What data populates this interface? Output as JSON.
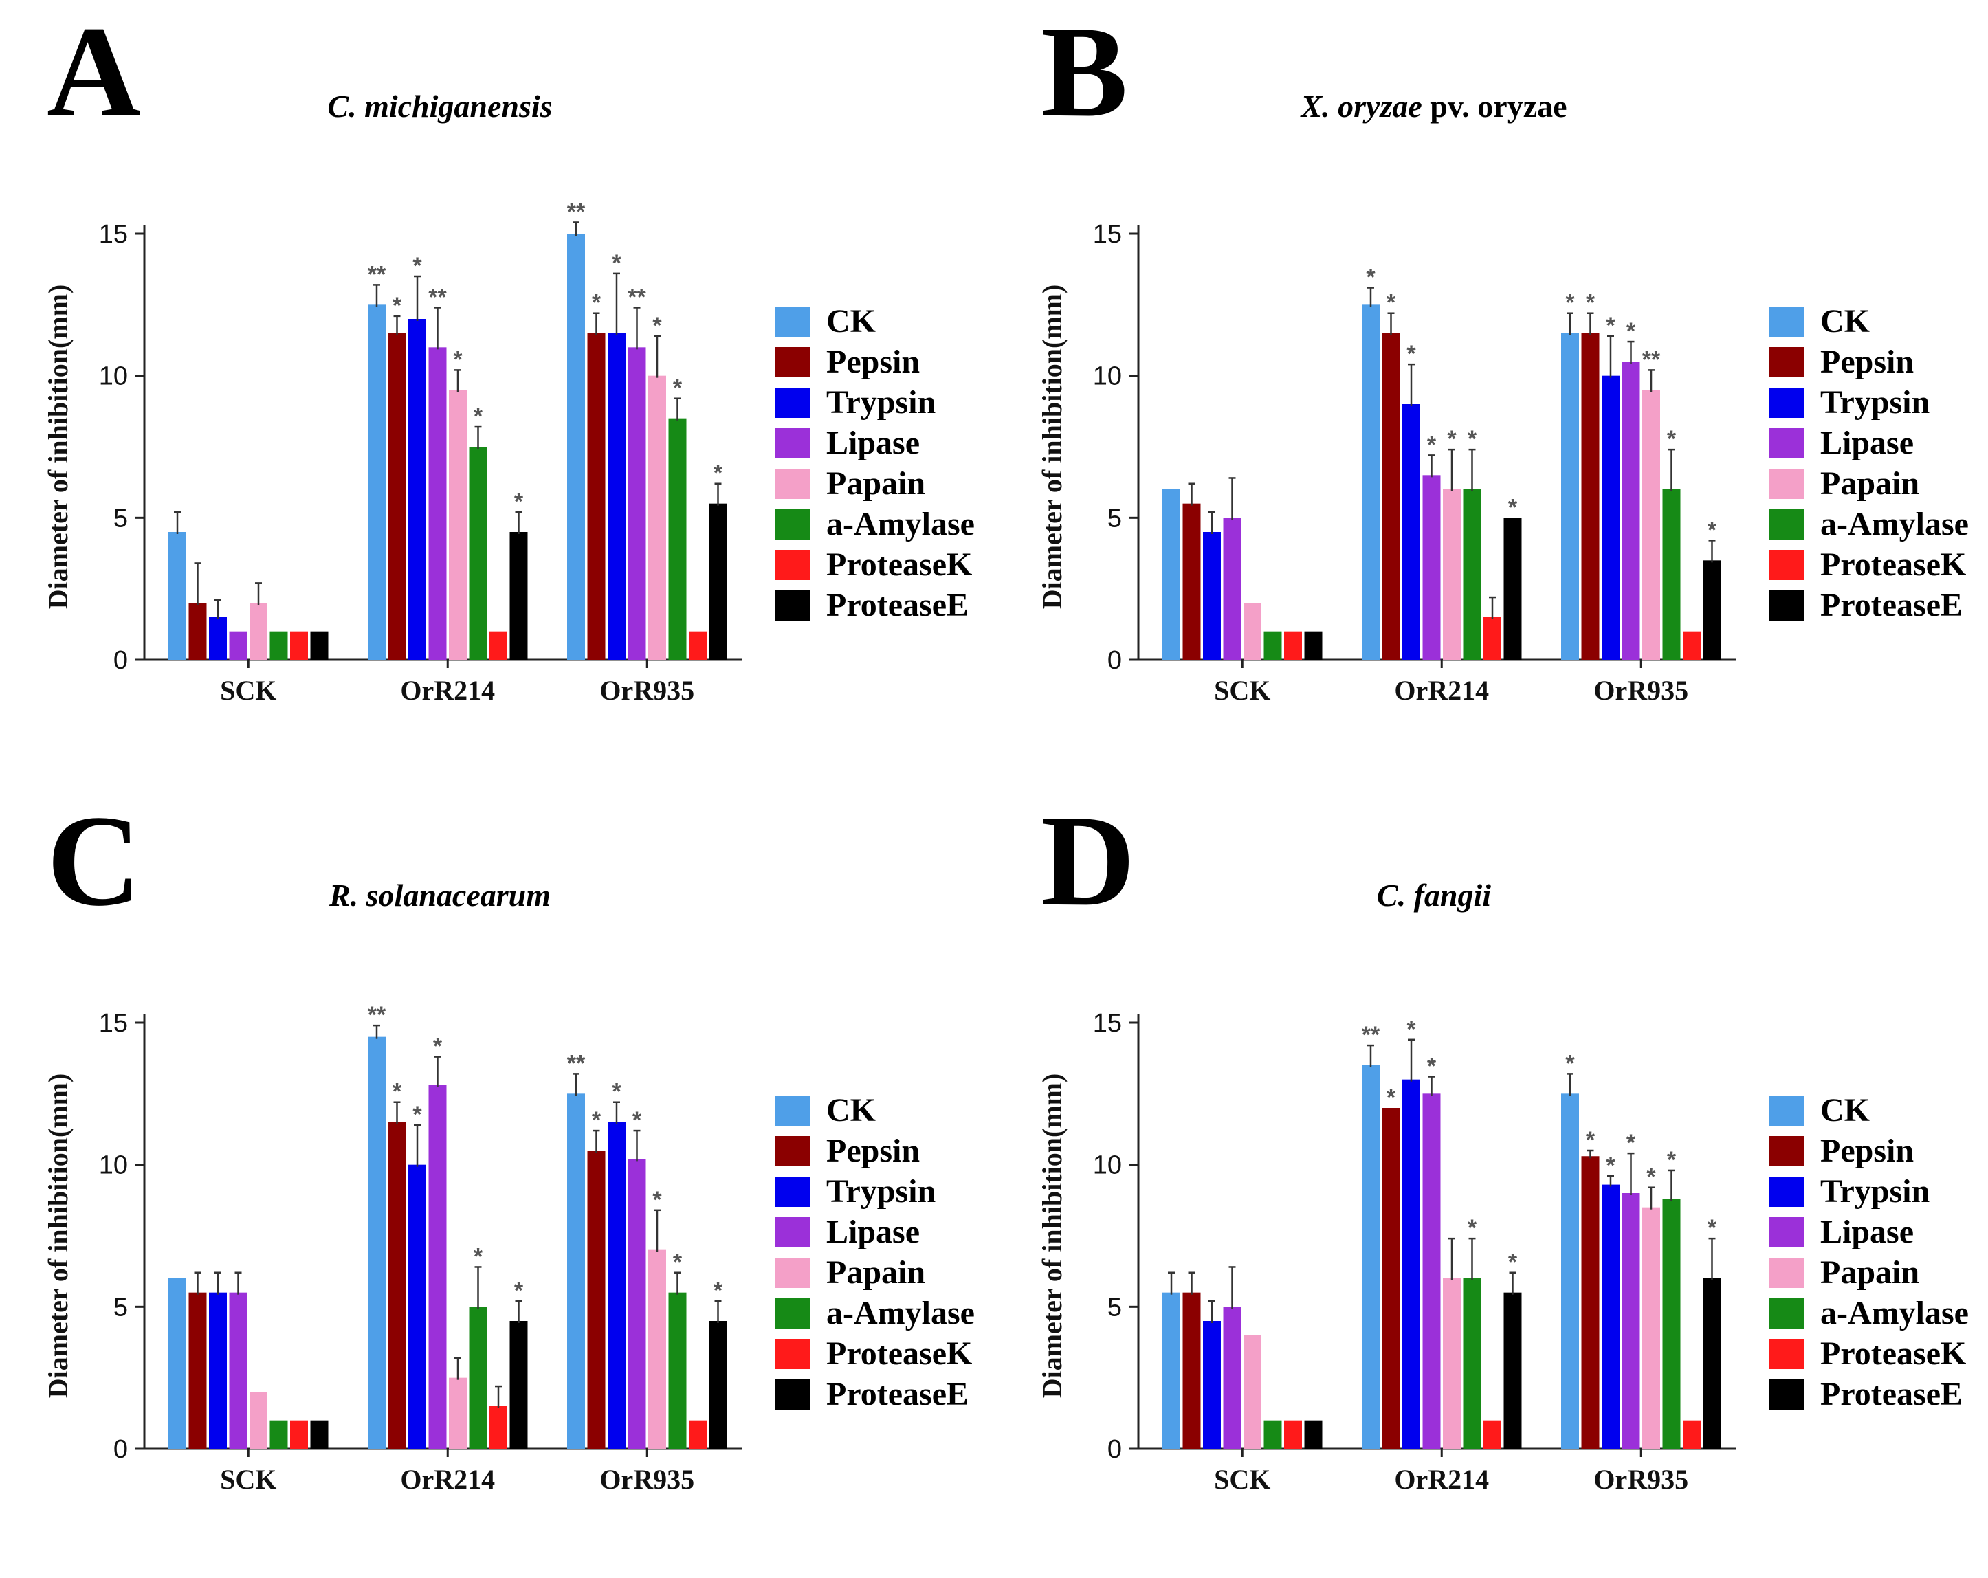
{
  "legend": {
    "labels": [
      "CK",
      "Pepsin",
      "Trypsin",
      "Lipase",
      "Papain",
      "a-Amylase",
      "ProteaseK",
      "ProteaseE"
    ],
    "colors": [
      "#4f9fe8",
      "#8b0000",
      "#0000ee",
      "#9b30d9",
      "#f4a0c8",
      "#168a16",
      "#ff1a1a",
      "#000000"
    ]
  },
  "chart_data": [
    {
      "panel": "A",
      "type": "bar",
      "title_parts": [
        {
          "text": "C. michiganensis",
          "italic": true
        }
      ],
      "ylabel": "Diameter of inhibition(mm)",
      "ylim": [
        0,
        15
      ],
      "yticks": [
        0,
        5,
        10,
        15
      ],
      "categories": [
        "SCK",
        "OrR214",
        "OrR935"
      ],
      "series": [
        {
          "name": "CK",
          "values": [
            4.5,
            12.5,
            15.0
          ],
          "errors": [
            0.7,
            0.7,
            0.4
          ],
          "marks": [
            "",
            "**",
            "**"
          ]
        },
        {
          "name": "Pepsin",
          "values": [
            2.0,
            11.5,
            11.5
          ],
          "errors": [
            1.4,
            0.6,
            0.7
          ],
          "marks": [
            "",
            "*",
            "*"
          ]
        },
        {
          "name": "Trypsin",
          "values": [
            1.5,
            12.0,
            11.5
          ],
          "errors": [
            0.6,
            1.5,
            2.1
          ],
          "marks": [
            "",
            "*",
            "*"
          ]
        },
        {
          "name": "Lipase",
          "values": [
            1.0,
            11.0,
            11.0
          ],
          "errors": [
            0.0,
            1.4,
            1.4
          ],
          "marks": [
            "",
            "**",
            "**"
          ]
        },
        {
          "name": "Papain",
          "values": [
            2.0,
            9.5,
            10.0
          ],
          "errors": [
            0.7,
            0.7,
            1.4
          ],
          "marks": [
            "",
            "*",
            "*"
          ]
        },
        {
          "name": "a-Amylase",
          "values": [
            1.0,
            7.5,
            8.5
          ],
          "errors": [
            0.0,
            0.7,
            0.7
          ],
          "marks": [
            "",
            "*",
            "*"
          ]
        },
        {
          "name": "ProteaseK",
          "values": [
            1.0,
            1.0,
            1.0
          ],
          "errors": [
            0.0,
            0.0,
            0.0
          ],
          "marks": [
            "",
            "",
            ""
          ]
        },
        {
          "name": "ProteaseE",
          "values": [
            1.0,
            4.5,
            5.5
          ],
          "errors": [
            0.0,
            0.7,
            0.7
          ],
          "marks": [
            "",
            "*",
            "*"
          ]
        }
      ]
    },
    {
      "panel": "B",
      "type": "bar",
      "title_parts": [
        {
          "text": "X. oryzae",
          "italic": true
        },
        {
          "text": " pv. oryzae",
          "italic": false
        }
      ],
      "ylabel": "Diameter of inhibition(mm)",
      "ylim": [
        0,
        15
      ],
      "yticks": [
        0,
        5,
        10,
        15
      ],
      "categories": [
        "SCK",
        "OrR214",
        "OrR935"
      ],
      "series": [
        {
          "name": "CK",
          "values": [
            6.0,
            12.5,
            11.5
          ],
          "errors": [
            0.0,
            0.6,
            0.7
          ],
          "marks": [
            "",
            "*",
            "*"
          ]
        },
        {
          "name": "Pepsin",
          "values": [
            5.5,
            11.5,
            11.5
          ],
          "errors": [
            0.7,
            0.7,
            0.7
          ],
          "marks": [
            "",
            "*",
            "*"
          ]
        },
        {
          "name": "Trypsin",
          "values": [
            4.5,
            9.0,
            10.0
          ],
          "errors": [
            0.7,
            1.4,
            1.4
          ],
          "marks": [
            "",
            "*",
            "*"
          ]
        },
        {
          "name": "Lipase",
          "values": [
            5.0,
            6.5,
            10.5
          ],
          "errors": [
            1.4,
            0.7,
            0.7
          ],
          "marks": [
            "",
            "*",
            "*"
          ]
        },
        {
          "name": "Papain",
          "values": [
            2.0,
            6.0,
            9.5
          ],
          "errors": [
            0.0,
            1.4,
            0.7
          ],
          "marks": [
            "",
            "*",
            "**"
          ]
        },
        {
          "name": "a-Amylase",
          "values": [
            1.0,
            6.0,
            6.0
          ],
          "errors": [
            0.0,
            1.4,
            1.4
          ],
          "marks": [
            "",
            "*",
            "*"
          ]
        },
        {
          "name": "ProteaseK",
          "values": [
            1.0,
            1.5,
            1.0
          ],
          "errors": [
            0.0,
            0.7,
            0.0
          ],
          "marks": [
            "",
            "",
            ""
          ]
        },
        {
          "name": "ProteaseE",
          "values": [
            1.0,
            5.0,
            3.5
          ],
          "errors": [
            0.0,
            0.0,
            0.7
          ],
          "marks": [
            "",
            "*",
            "*"
          ]
        }
      ]
    },
    {
      "panel": "C",
      "type": "bar",
      "title_parts": [
        {
          "text": "R. solanacearum",
          "italic": true
        }
      ],
      "ylabel": "Diameter of inhibition(mm)",
      "ylim": [
        0,
        15
      ],
      "yticks": [
        0,
        5,
        10,
        15
      ],
      "categories": [
        "SCK",
        "OrR214",
        "OrR935"
      ],
      "series": [
        {
          "name": "CK",
          "values": [
            6.0,
            14.5,
            12.5
          ],
          "errors": [
            0.0,
            0.4,
            0.7
          ],
          "marks": [
            "",
            "**",
            "**"
          ]
        },
        {
          "name": "Pepsin",
          "values": [
            5.5,
            11.5,
            10.5
          ],
          "errors": [
            0.7,
            0.7,
            0.7
          ],
          "marks": [
            "",
            "*",
            "*"
          ]
        },
        {
          "name": "Trypsin",
          "values": [
            5.5,
            10.0,
            11.5
          ],
          "errors": [
            0.7,
            1.4,
            0.7
          ],
          "marks": [
            "",
            "*",
            "*"
          ]
        },
        {
          "name": "Lipase",
          "values": [
            5.5,
            12.8,
            10.2
          ],
          "errors": [
            0.7,
            1.0,
            1.0
          ],
          "marks": [
            "",
            "*",
            "*"
          ]
        },
        {
          "name": "Papain",
          "values": [
            2.0,
            2.5,
            7.0
          ],
          "errors": [
            0.0,
            0.7,
            1.4
          ],
          "marks": [
            "",
            "",
            "*"
          ]
        },
        {
          "name": "a-Amylase",
          "values": [
            1.0,
            5.0,
            5.5
          ],
          "errors": [
            0.0,
            1.4,
            0.7
          ],
          "marks": [
            "",
            "*",
            "*"
          ]
        },
        {
          "name": "ProteaseK",
          "values": [
            1.0,
            1.5,
            1.0
          ],
          "errors": [
            0.0,
            0.7,
            0.0
          ],
          "marks": [
            "",
            "",
            ""
          ]
        },
        {
          "name": "ProteaseE",
          "values": [
            1.0,
            4.5,
            4.5
          ],
          "errors": [
            0.0,
            0.7,
            0.7
          ],
          "marks": [
            "",
            "*",
            "*"
          ]
        }
      ]
    },
    {
      "panel": "D",
      "type": "bar",
      "title_parts": [
        {
          "text": "C. fangii",
          "italic": true
        }
      ],
      "ylabel": "Diameter of inhibition(mm)",
      "ylim": [
        0,
        15
      ],
      "yticks": [
        0,
        5,
        10,
        15
      ],
      "categories": [
        "SCK",
        "OrR214",
        "OrR935"
      ],
      "series": [
        {
          "name": "CK",
          "values": [
            5.5,
            13.5,
            12.5
          ],
          "errors": [
            0.7,
            0.7,
            0.7
          ],
          "marks": [
            "",
            "**",
            "*"
          ]
        },
        {
          "name": "Pepsin",
          "values": [
            5.5,
            12.0,
            10.3
          ],
          "errors": [
            0.7,
            0.0,
            0.2
          ],
          "marks": [
            "",
            "*",
            "*"
          ]
        },
        {
          "name": "Trypsin",
          "values": [
            4.5,
            13.0,
            9.3
          ],
          "errors": [
            0.7,
            1.4,
            0.3
          ],
          "marks": [
            "",
            "*",
            "*"
          ]
        },
        {
          "name": "Lipase",
          "values": [
            5.0,
            12.5,
            9.0
          ],
          "errors": [
            1.4,
            0.6,
            1.4
          ],
          "marks": [
            "",
            "*",
            "*"
          ]
        },
        {
          "name": "Papain",
          "values": [
            4.0,
            6.0,
            8.5
          ],
          "errors": [
            0.0,
            1.4,
            0.7
          ],
          "marks": [
            "",
            "",
            "*"
          ]
        },
        {
          "name": "a-Amylase",
          "values": [
            1.0,
            6.0,
            8.8
          ],
          "errors": [
            0.0,
            1.4,
            1.0
          ],
          "marks": [
            "",
            "*",
            "*"
          ]
        },
        {
          "name": "ProteaseK",
          "values": [
            1.0,
            1.0,
            1.0
          ],
          "errors": [
            0.0,
            0.0,
            0.0
          ],
          "marks": [
            "",
            "",
            ""
          ]
        },
        {
          "name": "ProteaseE",
          "values": [
            1.0,
            5.5,
            6.0
          ],
          "errors": [
            0.0,
            0.7,
            1.4
          ],
          "marks": [
            "",
            "*",
            "*"
          ]
        }
      ]
    }
  ]
}
